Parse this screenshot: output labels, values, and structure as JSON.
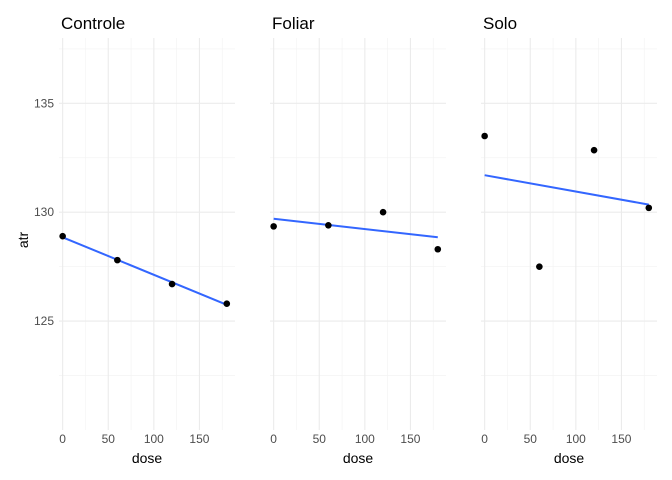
{
  "chart_data": {
    "type": "scatter",
    "facets": [
      "Controle",
      "Foliar",
      "Solo"
    ],
    "xlabel": "dose",
    "ylabel": "atr",
    "xlim": [
      -4,
      189
    ],
    "ylim": [
      120,
      138
    ],
    "x_ticks": [
      0,
      50,
      100,
      150
    ],
    "y_ticks": [
      125,
      130,
      135
    ],
    "grid": true,
    "panels": [
      {
        "name": "Controle",
        "points": [
          [
            0,
            128.9
          ],
          [
            60,
            127.8
          ],
          [
            120,
            126.7
          ],
          [
            180,
            125.8
          ]
        ],
        "fit": [
          [
            0,
            128.85
          ],
          [
            180,
            125.75
          ]
        ]
      },
      {
        "name": "Foliar",
        "points": [
          [
            0,
            129.35
          ],
          [
            60,
            129.4
          ],
          [
            120,
            130.0
          ],
          [
            180,
            128.3
          ]
        ],
        "fit": [
          [
            0,
            129.7
          ],
          [
            180,
            128.85
          ]
        ]
      },
      {
        "name": "Solo",
        "points": [
          [
            0,
            133.5
          ],
          [
            60,
            127.5
          ],
          [
            120,
            132.85
          ],
          [
            180,
            130.2
          ]
        ],
        "fit": [
          [
            0,
            131.7
          ],
          [
            180,
            130.35
          ]
        ]
      }
    ]
  }
}
